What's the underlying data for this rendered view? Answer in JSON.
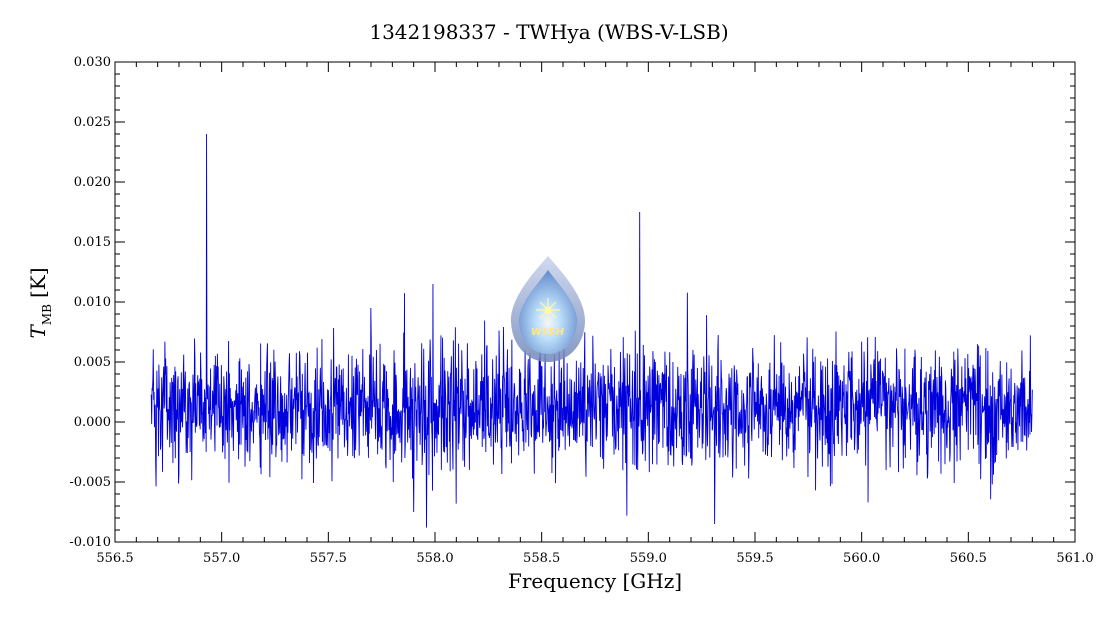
{
  "chart_data": {
    "type": "line",
    "title": "1342198337 - TWHya (WBS-V-LSB)",
    "xlabel": "Frequency [GHz]",
    "ylabel_main": "T",
    "ylabel_sub": "MB",
    "ylabel_unit": "[K]",
    "xlim": [
      556.5,
      561.0
    ],
    "ylim": [
      -0.01,
      0.03
    ],
    "xticks": [
      "556.5",
      "557.0",
      "557.5",
      "558.0",
      "558.5",
      "559.0",
      "559.5",
      "560.0",
      "560.5",
      "561.0"
    ],
    "yticks": [
      "-0.010",
      "-0.005",
      "0.000",
      "0.005",
      "0.010",
      "0.015",
      "0.020",
      "0.025",
      "0.030"
    ],
    "line_color": "#0000dd",
    "spectrum_range": [
      556.67,
      560.8
    ],
    "noise": {
      "mean": 0.0012,
      "rms": 0.0025
    },
    "spikes": [
      {
        "x": 556.93,
        "y": 0.024
      },
      {
        "x": 556.93,
        "y": -0.0065
      },
      {
        "x": 558.96,
        "y": 0.0175
      },
      {
        "x": 557.99,
        "y": 0.0115
      },
      {
        "x": 557.96,
        "y": -0.0088
      },
      {
        "x": 557.9,
        "y": -0.0075
      },
      {
        "x": 558.9,
        "y": -0.0078
      },
      {
        "x": 559.31,
        "y": -0.0085
      },
      {
        "x": 560.03,
        "y": -0.0067
      },
      {
        "x": 557.7,
        "y": 0.0095
      },
      {
        "x": 558.1,
        "y": -0.0068
      }
    ],
    "grid": false,
    "legend": "none"
  },
  "logo": {
    "text": "WISH",
    "icon": "wish-logo-icon"
  }
}
